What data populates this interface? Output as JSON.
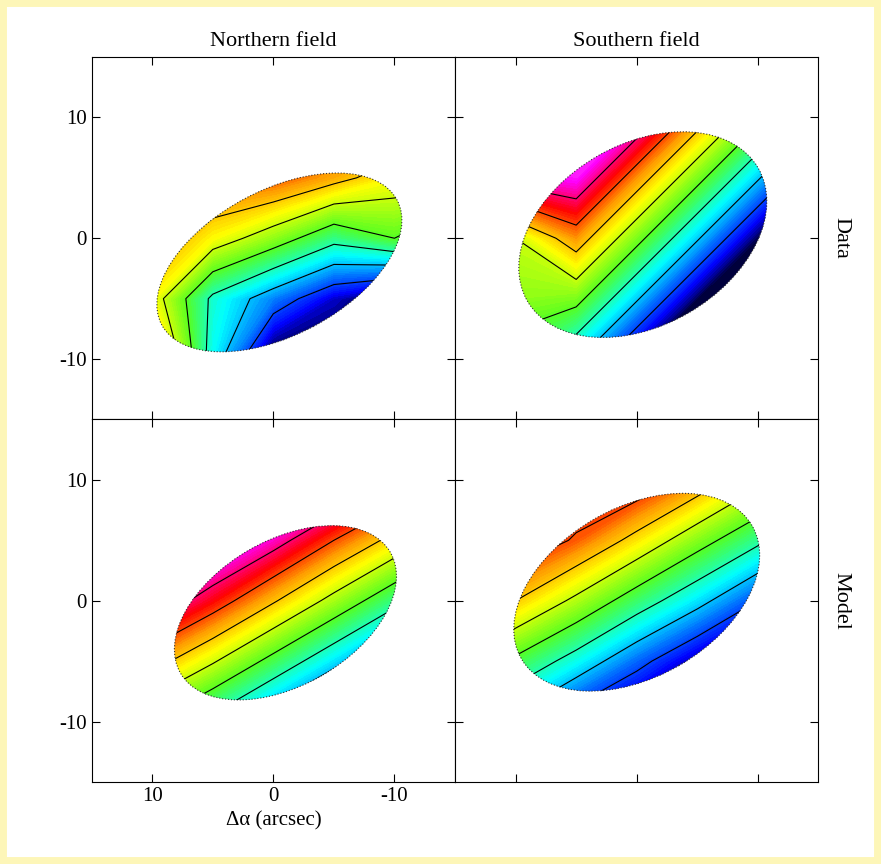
{
  "chart_data": [
    {
      "type": "heatmap",
      "title": "Northern field",
      "tick_labels": "y",
      "xlim": [
        15,
        -15
      ],
      "ylim": [
        -15,
        15
      ],
      "xticks": [
        10,
        0,
        -10
      ],
      "yticks": [
        -10,
        0,
        10
      ],
      "x": [
        -15,
        -10,
        -5,
        0,
        5,
        10,
        15
      ],
      "y": [
        -15,
        -10,
        -5,
        0,
        5,
        10,
        15
      ],
      "cells": [
        [
          0,
          0,
          0,
          0,
          0.1,
          0.5,
          0.6
        ],
        [
          0,
          0,
          0,
          0,
          0.3,
          0.75,
          0.7
        ],
        [
          0,
          0,
          0.08,
          0.2,
          0.33,
          0.6,
          0.7
        ],
        [
          0.3,
          0.45,
          0.38,
          0.5,
          0.6,
          0.72,
          0.8
        ],
        [
          0.6,
          0.6,
          0.68,
          0.75,
          0.75,
          0.78,
          0.8
        ],
        [
          0.75,
          0.78,
          0.8,
          0.8,
          0.8,
          0.8,
          0.8
        ],
        [
          0.8,
          0.8,
          0.8,
          0.8,
          0.8,
          0.8,
          0.8
        ]
      ],
      "color_range": [
        0,
        1
      ],
      "contour_levels": [
        0.15,
        0.25,
        0.35,
        0.45,
        0.55,
        0.65,
        0.75,
        0.85
      ],
      "field_of_view": {
        "center": [
          -0.5,
          -2
        ],
        "major": 22,
        "minor": 12,
        "position_angle": -28
      }
    },
    {
      "type": "heatmap",
      "title": "Southern field",
      "side_label": "Data",
      "tick_labels": false,
      "xlim": [
        15,
        -15
      ],
      "ylim": [
        -15,
        15
      ],
      "xticks": [
        10,
        0,
        -10
      ],
      "yticks": [
        -10,
        0,
        10
      ],
      "x": [
        -15,
        -10,
        -5,
        0,
        5,
        10,
        15
      ],
      "y": [
        -15,
        -10,
        -5,
        0,
        5,
        10,
        15
      ],
      "cells": [
        [
          0,
          0,
          0,
          0,
          0.03,
          0.2,
          0.3
        ],
        [
          0,
          0,
          0,
          0.03,
          0.26,
          0.4,
          0.5
        ],
        [
          0,
          0,
          0.03,
          0.26,
          0.48,
          0.5,
          0.55
        ],
        [
          0,
          0.03,
          0.26,
          0.48,
          0.7,
          0.55,
          0.6
        ],
        [
          0.03,
          0.26,
          0.48,
          0.7,
          0.93,
          0.9,
          0.85
        ],
        [
          0.26,
          0.48,
          0.7,
          0.93,
          1,
          1,
          1
        ],
        [
          0.5,
          0.7,
          0.93,
          1,
          1,
          1,
          1
        ]
      ],
      "color_range": [
        0,
        1
      ],
      "contour_levels": [
        0.15,
        0.25,
        0.35,
        0.45,
        0.55,
        0.65,
        0.75,
        0.85
      ],
      "field_of_view": {
        "center": [
          -0.5,
          0.3
        ],
        "major": 22,
        "minor": 15,
        "position_angle": -30
      }
    },
    {
      "type": "heatmap",
      "x_label": "Δα (arcsec)",
      "tick_labels": true,
      "xlim": [
        15,
        -15
      ],
      "ylim": [
        -15,
        15
      ],
      "xticks": [
        10,
        0,
        -10
      ],
      "yticks": [
        -10,
        0,
        10
      ],
      "x": [
        -15,
        -10,
        -5,
        0,
        5,
        10,
        15
      ],
      "y": [
        -15,
        -10,
        -5,
        0,
        5,
        10,
        15
      ],
      "cells": [
        [
          0,
          0,
          0,
          0,
          0.08,
          0.22,
          0.35
        ],
        [
          0,
          0,
          0.04,
          0.18,
          0.32,
          0.45,
          0.59
        ],
        [
          0.01,
          0.14,
          0.28,
          0.42,
          0.56,
          0.69,
          0.83
        ],
        [
          0.25,
          0.38,
          0.52,
          0.66,
          0.8,
          0.93,
          1
        ],
        [
          0.48,
          0.62,
          0.75,
          0.89,
          1,
          1,
          1
        ],
        [
          0.72,
          0.86,
          0.99,
          1,
          1,
          1,
          1
        ],
        [
          0.95,
          1,
          1,
          1,
          1,
          1,
          1
        ]
      ],
      "color_range": [
        0,
        1
      ],
      "contour_levels": [
        0.15,
        0.25,
        0.35,
        0.45,
        0.55,
        0.65,
        0.75,
        0.85
      ],
      "field_of_view": {
        "center": [
          -1,
          -1
        ],
        "major": 20,
        "minor": 12,
        "position_angle": -30
      }
    },
    {
      "type": "heatmap",
      "side_label": "Model",
      "tick_labels": false,
      "xlim": [
        15,
        -15
      ],
      "ylim": [
        -15,
        15
      ],
      "xticks": [
        10,
        0,
        -10
      ],
      "yticks": [
        -10,
        0,
        10
      ],
      "x": [
        -15,
        -10,
        -5,
        0,
        5,
        10,
        15
      ],
      "y": [
        -15,
        -10,
        -5,
        0,
        5,
        10,
        15
      ],
      "cells": [
        [
          0,
          0,
          0,
          0,
          0,
          0,
          0.125
        ],
        [
          0,
          0,
          0,
          0,
          0.09,
          0.22,
          0.34
        ],
        [
          0,
          0,
          0.06,
          0.18,
          0.31,
          0.43,
          0.56
        ],
        [
          0.03,
          0.15,
          0.28,
          0.4,
          0.53,
          0.65,
          0.78
        ],
        [
          0.24,
          0.37,
          0.49,
          0.62,
          0.74,
          0.82,
          0.82
        ],
        [
          0.46,
          0.58,
          0.71,
          0.82,
          0.82,
          0.82,
          0.82
        ],
        [
          0.67,
          0.8,
          0.82,
          0.82,
          0.82,
          0.82,
          0.82
        ]
      ],
      "color_range": [
        0,
        1
      ],
      "contour_levels": [
        0.15,
        0.25,
        0.35,
        0.45,
        0.55,
        0.65,
        0.75
      ],
      "field_of_view": {
        "center": [
          0,
          0.7
        ],
        "major": 22,
        "minor": 14,
        "position_angle": -30
      }
    }
  ]
}
